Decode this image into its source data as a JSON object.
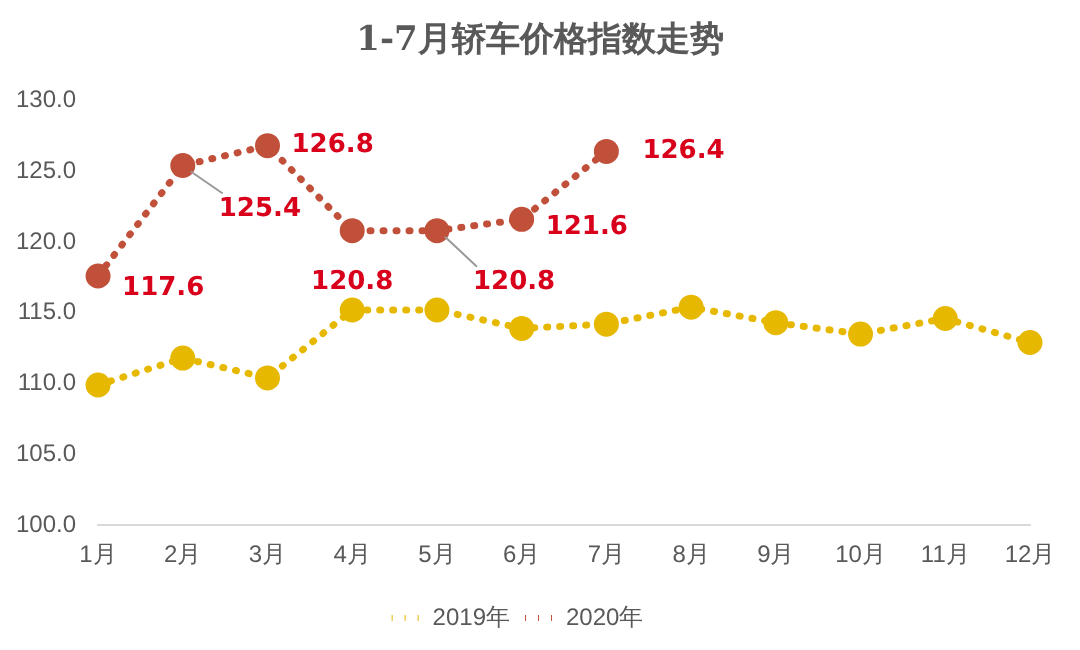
{
  "chart_data": {
    "type": "line",
    "title": "1-7月轿车价格指数走势",
    "categories": [
      "1月",
      "2月",
      "3月",
      "4月",
      "5月",
      "6月",
      "7月",
      "8月",
      "9月",
      "10月",
      "11月",
      "12月"
    ],
    "series": [
      {
        "name": "2019年",
        "color": "#e6b800",
        "values": [
          109.9,
          111.8,
          110.4,
          115.2,
          115.2,
          113.9,
          114.2,
          115.4,
          114.3,
          113.5,
          114.6,
          112.9
        ]
      },
      {
        "name": "2020年",
        "color": "#c0503a",
        "values": [
          117.6,
          125.4,
          126.8,
          120.8,
          120.8,
          121.6,
          126.4,
          null,
          null,
          null,
          null,
          null
        ],
        "value_labels": [
          "117.6",
          "125.4",
          "126.8",
          "120.8",
          "120.8",
          "121.6",
          "126.4",
          null,
          null,
          null,
          null,
          null
        ]
      }
    ],
    "ylim": [
      100,
      130
    ],
    "yticks": [
      {
        "value": 100,
        "label": "100.0"
      },
      {
        "value": 105,
        "label": "105.0"
      },
      {
        "value": 110,
        "label": "110.0"
      },
      {
        "value": 115,
        "label": "115.0"
      },
      {
        "value": 120,
        "label": "120.0"
      },
      {
        "value": 125,
        "label": "125.0"
      },
      {
        "value": 130,
        "label": "130.0"
      }
    ],
    "grid": false,
    "legend": "bottom",
    "marker": "circle",
    "line_style": "dotted"
  }
}
